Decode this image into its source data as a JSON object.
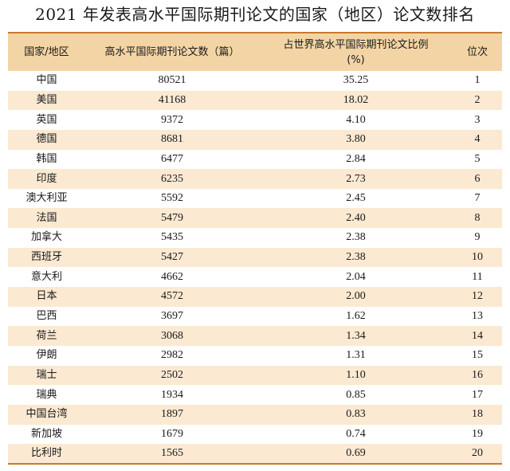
{
  "title": "2021 年发表高水平国际期刊论文的国家（地区）论文数排名",
  "headers": {
    "country": "国家/地区",
    "papers": "高水平国际期刊论文数（篇）",
    "share_line1": "占世界高水平国际期刊论文比例",
    "share_line2": "(%)",
    "rank": "位次"
  },
  "rows": [
    {
      "country": "中国",
      "papers": "80521",
      "share": "35.25",
      "rank": "1"
    },
    {
      "country": "美国",
      "papers": "41168",
      "share": "18.02",
      "rank": "2"
    },
    {
      "country": "英国",
      "papers": "9372",
      "share": "4.10",
      "rank": "3"
    },
    {
      "country": "德国",
      "papers": "8681",
      "share": "3.80",
      "rank": "4"
    },
    {
      "country": "韩国",
      "papers": "6477",
      "share": "2.84",
      "rank": "5"
    },
    {
      "country": "印度",
      "papers": "6235",
      "share": "2.73",
      "rank": "6"
    },
    {
      "country": "澳大利亚",
      "papers": "5592",
      "share": "2.45",
      "rank": "7"
    },
    {
      "country": "法国",
      "papers": "5479",
      "share": "2.40",
      "rank": "8"
    },
    {
      "country": "加拿大",
      "papers": "5435",
      "share": "2.38",
      "rank": "9"
    },
    {
      "country": "西班牙",
      "papers": "5427",
      "share": "2.38",
      "rank": "10"
    },
    {
      "country": "意大利",
      "papers": "4662",
      "share": "2.04",
      "rank": "11"
    },
    {
      "country": "日本",
      "papers": "4572",
      "share": "2.00",
      "rank": "12"
    },
    {
      "country": "巴西",
      "papers": "3697",
      "share": "1.62",
      "rank": "13"
    },
    {
      "country": "荷兰",
      "papers": "3068",
      "share": "1.34",
      "rank": "14"
    },
    {
      "country": "伊朗",
      "papers": "2982",
      "share": "1.31",
      "rank": "15"
    },
    {
      "country": "瑞士",
      "papers": "2502",
      "share": "1.10",
      "rank": "16"
    },
    {
      "country": "瑞典",
      "papers": "1934",
      "share": "0.85",
      "rank": "17"
    },
    {
      "country": "中国台湾",
      "papers": "1897",
      "share": "0.83",
      "rank": "18"
    },
    {
      "country": "新加坡",
      "papers": "1679",
      "share": "0.74",
      "rank": "19"
    },
    {
      "country": "比利时",
      "papers": "1565",
      "share": "0.69",
      "rank": "20"
    }
  ]
}
